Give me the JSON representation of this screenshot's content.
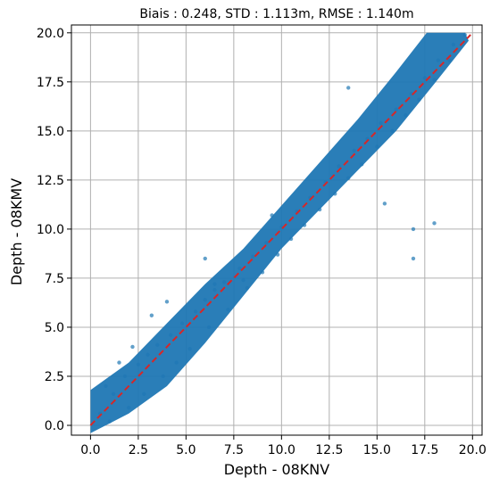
{
  "chart_data": {
    "type": "scatter",
    "title": "Biais : 0.248, STD : 1.113m, RMSE : 1.140m",
    "xlabel": "Depth - 08KNV",
    "ylabel": "Depth - 08KMV",
    "xlim": [
      -1.0,
      20.5
    ],
    "ylim": [
      -0.5,
      20.4
    ],
    "xticks": [
      "0.0",
      "2.5",
      "5.0",
      "7.5",
      "10.0",
      "12.5",
      "15.0",
      "17.5",
      "20.0"
    ],
    "yticks": [
      "0.0",
      "2.5",
      "5.0",
      "7.5",
      "10.0",
      "12.5",
      "15.0",
      "17.5",
      "20.0"
    ],
    "grid": true,
    "point_color": "#1f77b4",
    "reference_line": {
      "style": "dashed",
      "color": "#d62728",
      "from": [
        0,
        0
      ],
      "to": [
        19.9,
        19.9
      ]
    },
    "series": [
      {
        "x": [
          0.5,
          1.2,
          1.8,
          2.5,
          3.0,
          3.5,
          4.2,
          4.8,
          5.5,
          6.0,
          6.5,
          7.0,
          7.8,
          8.5,
          9.2,
          10.0,
          10.8,
          11.5,
          12.3,
          13.0,
          13.8,
          14.5,
          15.2,
          16.0,
          16.8,
          17.5,
          18.2,
          19.0,
          19.6,
          1.0,
          2.0,
          2.8,
          3.8,
          4.5,
          5.2,
          6.2,
          7.2,
          8.2,
          9.0,
          9.8,
          10.5,
          11.2,
          12.0,
          12.8,
          13.5,
          14.2,
          15.0,
          15.8,
          16.5,
          17.2,
          18.0,
          18.8,
          0.8,
          1.5,
          2.2,
          3.2,
          4.0,
          6.0,
          6.5,
          9.5,
          8.0,
          13.5,
          16.9,
          15.4,
          16.9,
          18.0
        ],
        "y": [
          0.6,
          1.6,
          2.5,
          3.1,
          3.6,
          4.1,
          4.6,
          5.2,
          5.8,
          6.4,
          6.9,
          7.3,
          8.0,
          8.6,
          9.3,
          10.1,
          10.9,
          11.6,
          12.4,
          13.2,
          14.0,
          14.6,
          15.4,
          16.1,
          16.9,
          17.7,
          18.6,
          19.4,
          19.9,
          0.2,
          0.9,
          1.6,
          2.5,
          3.2,
          3.9,
          5.0,
          5.9,
          7.0,
          7.8,
          8.7,
          9.5,
          10.2,
          11.0,
          11.8,
          12.6,
          13.3,
          14.2,
          15.0,
          15.8,
          16.6,
          17.6,
          18.6,
          2.0,
          3.2,
          4.0,
          5.6,
          6.3,
          8.5,
          7.2,
          10.7,
          7.4,
          17.2,
          10.0,
          11.3,
          8.5,
          10.3
        ]
      }
    ]
  }
}
